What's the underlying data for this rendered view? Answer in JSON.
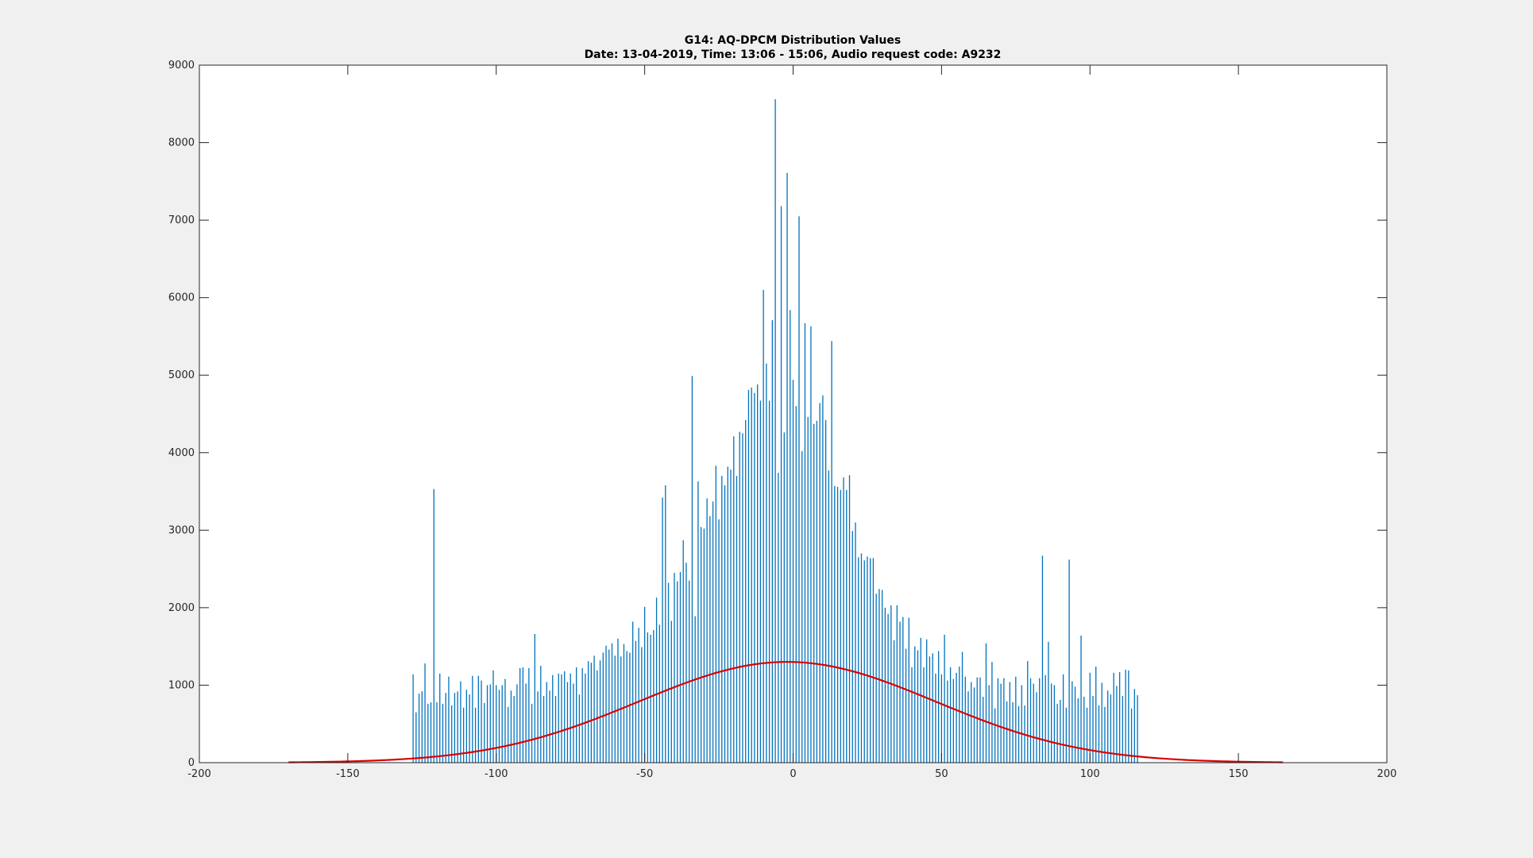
{
  "chart_data": {
    "type": "bar",
    "title": "G14: AQ-DPCM Distribution Values",
    "subtitle": "Date: 13-04-2019, Time: 13:06 - 15:06, Audio request code: A9232",
    "xlabel": "",
    "ylabel": "",
    "xlim": [
      -200,
      200
    ],
    "ylim": [
      0,
      9000
    ],
    "x_ticks": [
      -200,
      -150,
      -100,
      -50,
      0,
      50,
      100,
      150,
      200
    ],
    "y_ticks": [
      0,
      1000,
      2000,
      3000,
      4000,
      5000,
      6000,
      7000,
      8000,
      9000
    ],
    "grid": false,
    "legend": "none",
    "series": [
      {
        "kind": "bar",
        "color": "#0072BD",
        "x_start": -128,
        "x_end": 127,
        "values": [
          1140,
          650,
          890,
          920,
          1280,
          760,
          780,
          3530,
          780,
          1150,
          760,
          900,
          1110,
          740,
          900,
          920,
          1050,
          710,
          940,
          880,
          1120,
          710,
          1120,
          1060,
          770,
          1000,
          1010,
          1190,
          1000,
          940,
          1000,
          1080,
          720,
          930,
          860,
          1010,
          1220,
          1230,
          1020,
          1220,
          760,
          1660,
          920,
          1250,
          860,
          1040,
          930,
          1130,
          860,
          1150,
          1140,
          1180,
          1040,
          1150,
          1020,
          1230,
          880,
          1220,
          1150,
          1310,
          1290,
          1380,
          1190,
          1320,
          1420,
          1510,
          1460,
          1540,
          1380,
          1600,
          1370,
          1530,
          1440,
          1420,
          1820,
          1570,
          1740,
          1490,
          2010,
          1680,
          1650,
          1710,
          2130,
          1780,
          3420,
          3580,
          2320,
          1830,
          2450,
          2340,
          2460,
          2870,
          2580,
          2350,
          4990,
          1890,
          3630,
          3040,
          3020,
          3410,
          3180,
          3370,
          3830,
          3140,
          3700,
          3580,
          3820,
          3780,
          4210,
          3700,
          4270,
          4250,
          4420,
          4810,
          4840,
          4770,
          4880,
          4670,
          6100,
          5150,
          4670,
          5710,
          8560,
          3740,
          7180,
          4260,
          7610,
          5840,
          4940,
          4600,
          7050,
          4020,
          5670,
          4460,
          5630,
          4370,
          4410,
          4640,
          4740,
          4420,
          3770,
          5440,
          3570,
          3560,
          3520,
          3680,
          3520,
          3710,
          2990,
          3100,
          2650,
          2700,
          2610,
          2660,
          2640,
          2640,
          2180,
          2240,
          2230,
          2000,
          1920,
          2030,
          1580,
          2030,
          1820,
          1880,
          1470,
          1870,
          1230,
          1500,
          1450,
          1610,
          1230,
          1590,
          1370,
          1410,
          1150,
          1440,
          1140,
          1650,
          1060,
          1230,
          1080,
          1160,
          1240,
          1430,
          1110,
          920,
          1040,
          970,
          1100,
          1100,
          850,
          1540,
          1000,
          1300,
          700,
          1090,
          1020,
          1090,
          790,
          1040,
          780,
          1110,
          730,
          1000,
          740,
          1310,
          1090,
          1020,
          910,
          1090,
          2670,
          1130,
          1560,
          1020,
          1000,
          760,
          810,
          1140,
          710,
          2620,
          1050,
          980,
          830,
          1640,
          850,
          710,
          1160,
          860,
          1240,
          740,
          1030,
          720,
          930,
          880,
          1160,
          990,
          1170,
          860,
          1200,
          1190,
          700,
          950,
          870
        ]
      },
      {
        "kind": "line",
        "color": "#D90000",
        "fit": "normal",
        "x_range": [
          -170,
          165
        ],
        "mean": -2,
        "sigma": 50,
        "peak": 1300
      }
    ]
  }
}
